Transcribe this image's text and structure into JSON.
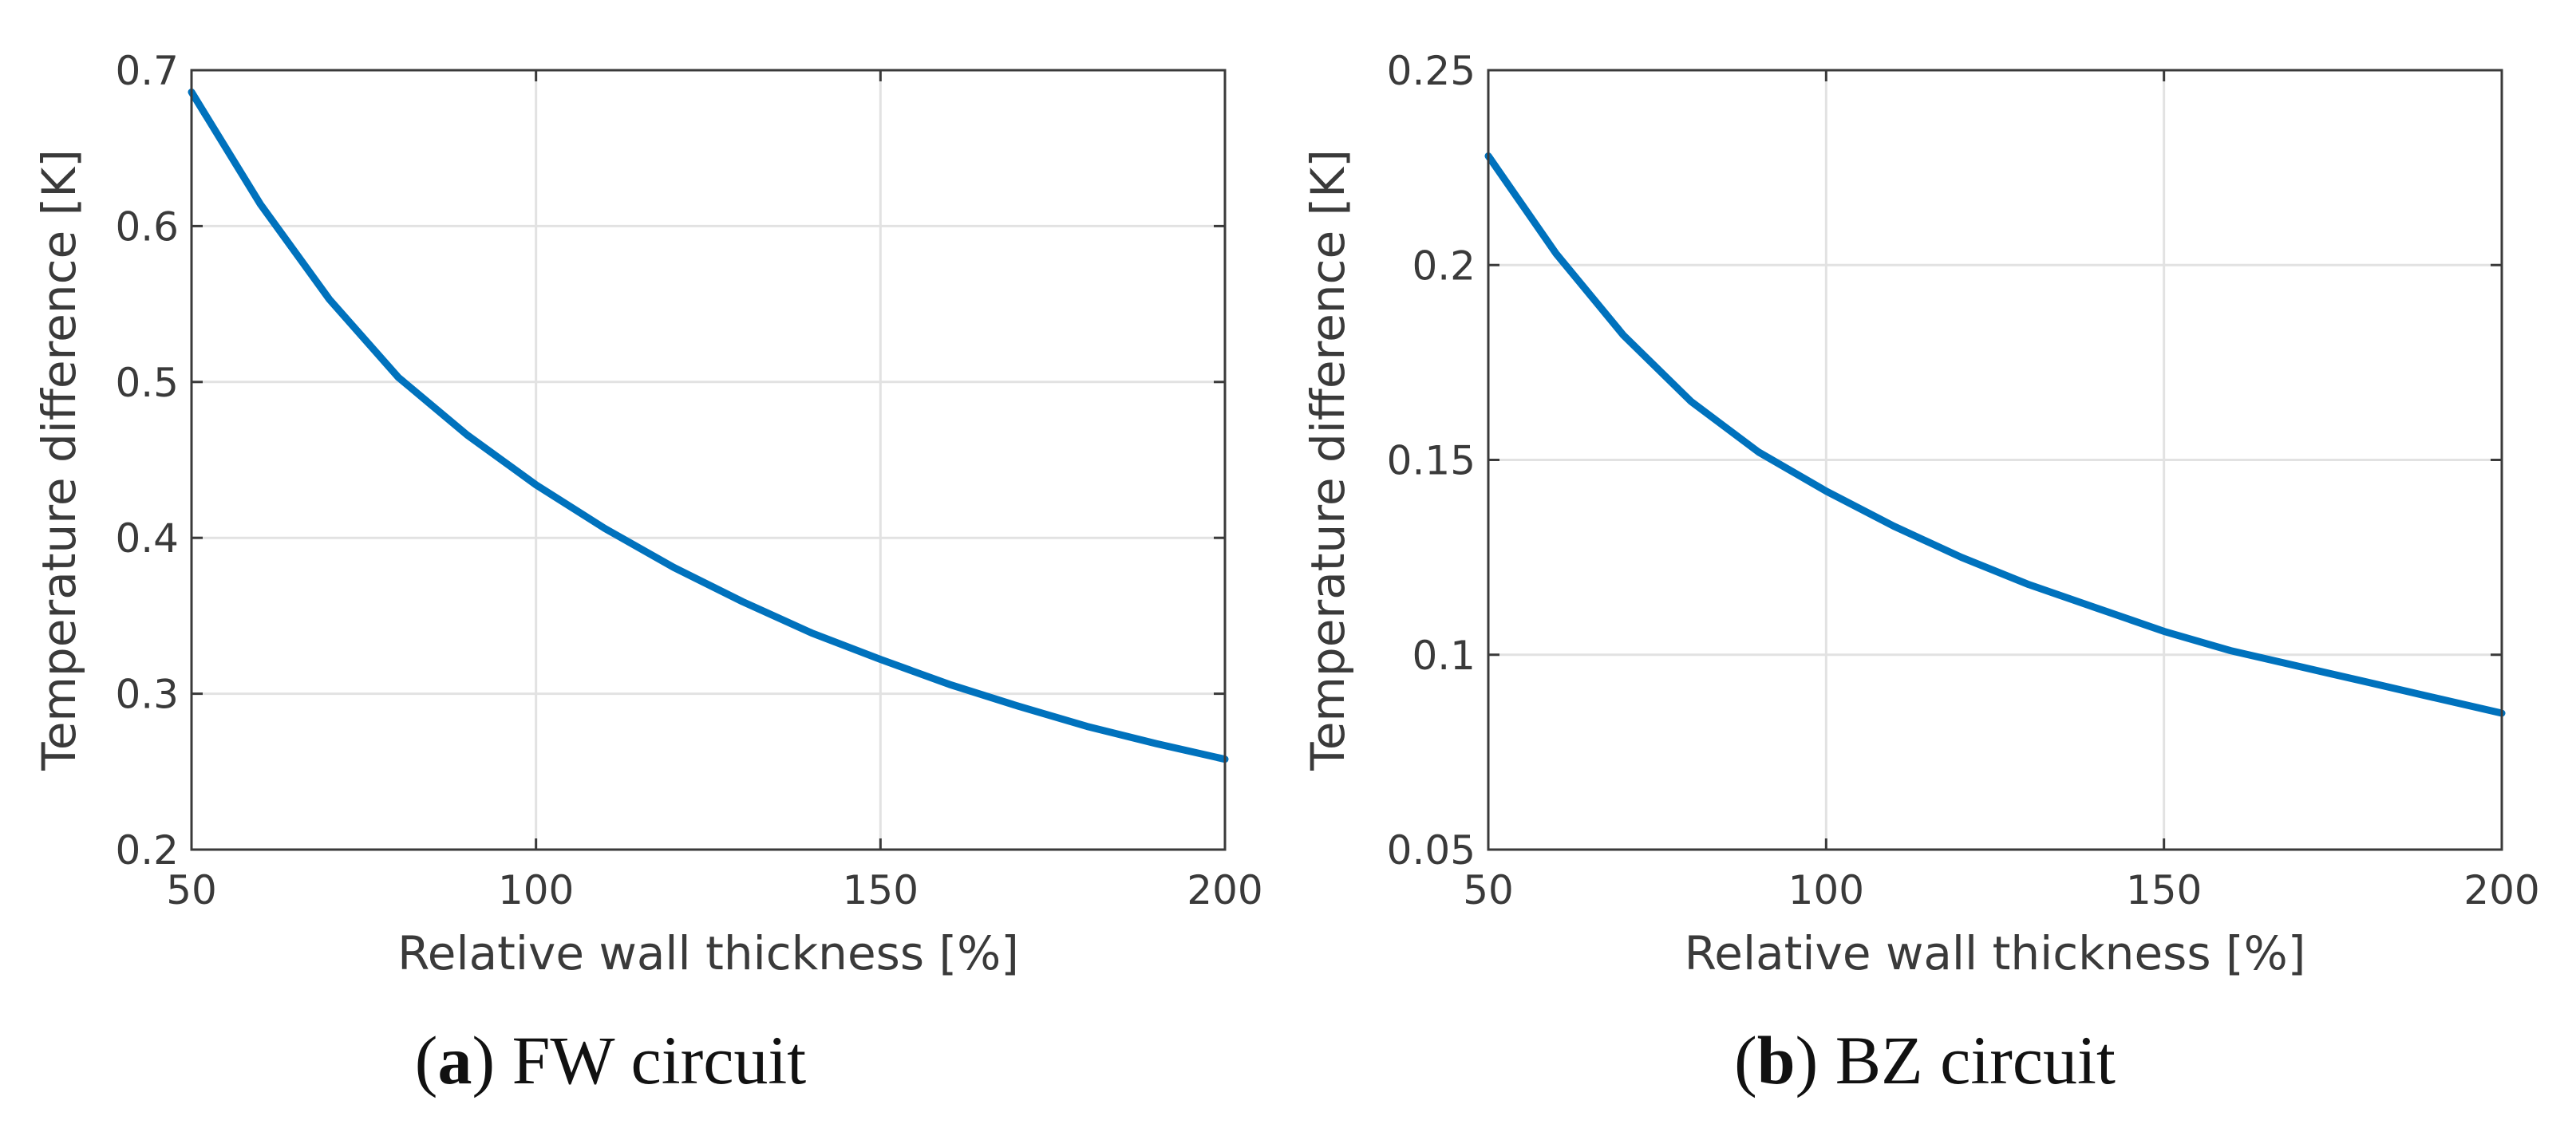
{
  "chart_data": [
    {
      "type": "line",
      "caption_letter": "a",
      "caption_text": "FW circuit",
      "xlabel": "Relative wall thickness [%]",
      "ylabel": "Temperature difference [K]",
      "xlim": [
        50,
        200
      ],
      "ylim": [
        0.2,
        0.7
      ],
      "xticks": [
        50,
        100,
        150,
        200
      ],
      "xtick_labels": [
        "50",
        "100",
        "150",
        "200"
      ],
      "yticks": [
        0.2,
        0.3,
        0.4,
        0.5,
        0.6,
        0.7
      ],
      "ytick_labels": [
        "0.2",
        "0.3",
        "0.4",
        "0.5",
        "0.6",
        "0.7"
      ],
      "grid": true,
      "series": [
        {
          "name": "FW circuit",
          "color": "#0072BD",
          "x": [
            50,
            60,
            70,
            80,
            90,
            100,
            110,
            120,
            130,
            140,
            150,
            160,
            170,
            180,
            190,
            200
          ],
          "values": [
            0.686,
            0.614,
            0.553,
            0.503,
            0.466,
            0.434,
            0.406,
            0.381,
            0.359,
            0.339,
            0.322,
            0.306,
            0.292,
            0.279,
            0.268,
            0.258
          ]
        }
      ]
    },
    {
      "type": "line",
      "caption_letter": "b",
      "caption_text": "BZ circuit",
      "xlabel": "Relative wall thickness [%]",
      "ylabel": "Temperature difference [K]",
      "xlim": [
        50,
        200
      ],
      "ylim": [
        0.05,
        0.25
      ],
      "xticks": [
        50,
        100,
        150,
        200
      ],
      "xtick_labels": [
        "50",
        "100",
        "150",
        "200"
      ],
      "yticks": [
        0.05,
        0.1,
        0.15,
        0.2,
        0.25
      ],
      "ytick_labels": [
        "0.05",
        "0.1",
        "0.15",
        "0.2",
        "0.25"
      ],
      "grid": true,
      "series": [
        {
          "name": "BZ circuit",
          "color": "#0072BD",
          "x": [
            50,
            60,
            70,
            80,
            90,
            100,
            110,
            120,
            130,
            140,
            150,
            160,
            170,
            180,
            190,
            200
          ],
          "values": [
            0.228,
            0.203,
            0.182,
            0.165,
            0.152,
            0.142,
            0.133,
            0.125,
            0.118,
            0.112,
            0.106,
            0.101,
            0.097,
            0.093,
            0.089,
            0.085
          ]
        }
      ]
    }
  ]
}
